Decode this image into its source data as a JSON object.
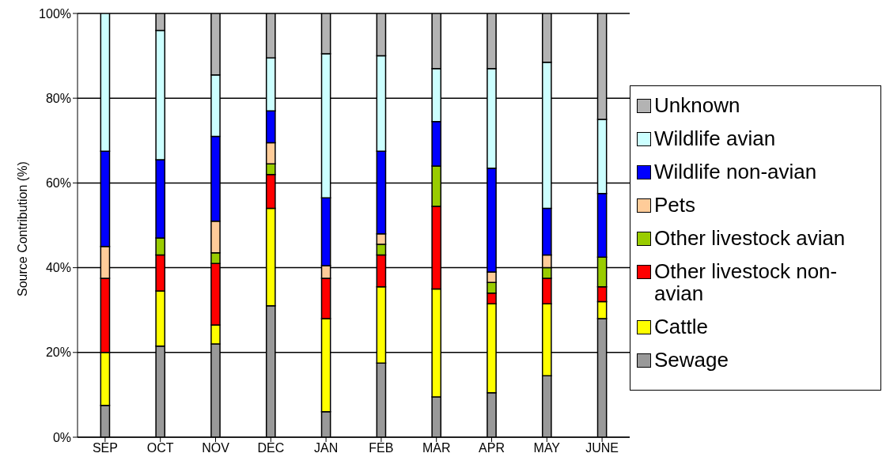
{
  "chart_data": {
    "type": "bar",
    "stacked": true,
    "ylabel": "Source Contribution (%)",
    "categories": [
      "SEP",
      "OCT",
      "NOV",
      "DEC",
      "JAN",
      "FEB",
      "MAR",
      "APR",
      "MAY",
      "JUNE"
    ],
    "series": [
      {
        "name": "Sewage",
        "color": "#999999",
        "values": [
          7.5,
          21.5,
          22,
          31,
          6,
          17.5,
          9.5,
          10.5,
          14.5,
          28
        ]
      },
      {
        "name": "Cattle",
        "color": "#ffff00",
        "values": [
          12.5,
          13,
          4.5,
          23,
          22,
          18,
          25.5,
          21,
          17,
          4
        ]
      },
      {
        "name": "Other livestock non-avian",
        "color": "#ff0000",
        "values": [
          17.5,
          8.5,
          14.5,
          8,
          9.5,
          7.5,
          19.5,
          2.5,
          6,
          3.5
        ]
      },
      {
        "name": "Other livestock avian",
        "color": "#99cc00",
        "values": [
          0,
          4,
          2.5,
          2.5,
          0,
          2.5,
          9.5,
          2.5,
          2.5,
          7
        ]
      },
      {
        "name": "Pets",
        "color": "#ffcc99",
        "values": [
          7.5,
          0,
          7.5,
          5,
          3,
          2.5,
          0,
          2.5,
          3,
          0
        ]
      },
      {
        "name": "Wildlife non-avian",
        "color": "#0000ff",
        "values": [
          22.5,
          18.5,
          20,
          7.5,
          16,
          19.5,
          10.5,
          24.5,
          11,
          15
        ]
      },
      {
        "name": "Wildlife avian",
        "color": "#ccffff",
        "values": [
          32.5,
          30.5,
          14.5,
          12.5,
          34,
          22.5,
          12.5,
          23.5,
          34.5,
          17.5
        ]
      },
      {
        "name": "Unknown",
        "color": "#b3b3b3",
        "values": [
          0,
          4,
          14.5,
          10.5,
          9.5,
          10,
          13,
          13,
          11.5,
          25
        ]
      }
    ],
    "ylim": [
      0,
      100
    ],
    "yticks": [
      {
        "value": 0,
        "label": "0%"
      },
      {
        "value": 20,
        "label": "20%"
      },
      {
        "value": 40,
        "label": "40%"
      },
      {
        "value": 60,
        "label": "60%"
      },
      {
        "value": 80,
        "label": "80%"
      },
      {
        "value": 100,
        "label": "100%"
      }
    ],
    "grid": "y",
    "legend": "right"
  }
}
